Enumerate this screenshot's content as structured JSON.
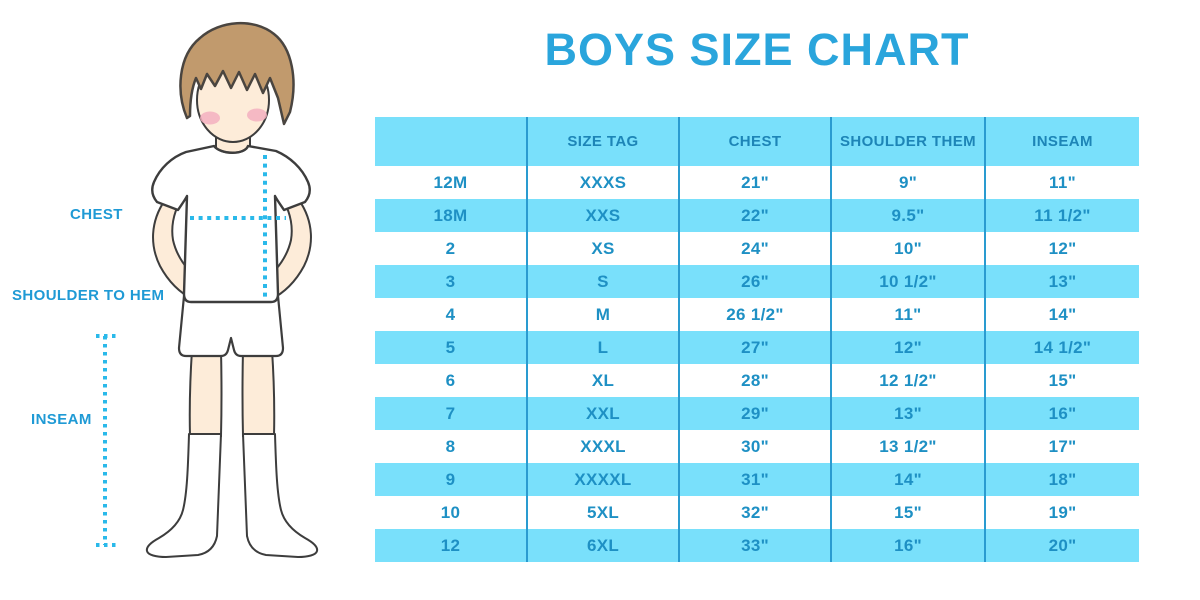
{
  "title": "BOYS SIZE CHART",
  "figure": {
    "description": "boy-in-tshirt-shorts-socks-illustration",
    "labels": {
      "chest": "CHEST",
      "shoulder_to_hem": "SHOULDER TO HEM",
      "inseam": "INSEAM"
    }
  },
  "chart_data": {
    "type": "table",
    "title": "BOYS SIZE CHART",
    "columns": [
      "",
      "SIZE TAG",
      "CHEST",
      "SHOULDER THEM",
      "INSEAM"
    ],
    "rows": [
      [
        "12M",
        "XXXS",
        "21\"",
        "9\"",
        "11\""
      ],
      [
        "18M",
        "XXS",
        "22\"",
        "9.5\"",
        "11 1/2\""
      ],
      [
        "2",
        "XS",
        "24\"",
        "10\"",
        "12\""
      ],
      [
        "3",
        "S",
        "26\"",
        "10 1/2\"",
        "13\""
      ],
      [
        "4",
        "M",
        "26 1/2\"",
        "11\"",
        "14\""
      ],
      [
        "5",
        "L",
        "27\"",
        "12\"",
        "14 1/2\""
      ],
      [
        "6",
        "XL",
        "28\"",
        "12 1/2\"",
        "15\""
      ],
      [
        "7",
        "XXL",
        "29\"",
        "13\"",
        "16\""
      ],
      [
        "8",
        "XXXL",
        "30\"",
        "13 1/2\"",
        "17\""
      ],
      [
        "9",
        "XXXXL",
        "31\"",
        "14\"",
        "18\""
      ],
      [
        "10",
        "5XL",
        "32\"",
        "15\"",
        "19\""
      ],
      [
        "12",
        "6XL",
        "33\"",
        "16\"",
        "20\""
      ]
    ],
    "layout": {
      "alternating_row_colors": true,
      "first_data_row_background": "white",
      "header_background": "light-blue"
    }
  },
  "colors": {
    "title_blue": "#2aa5dc",
    "row_light_blue": "#79e0fb",
    "cell_text_blue": "#1e90c4",
    "header_text_blue": "#1d85b7",
    "divider_blue": "#2a9bd0",
    "label_blue": "#1f9ad5",
    "dotted_line_cyan": "#2ab9ea",
    "hair_brown": "#c19a6d",
    "skin": "#fdecd9",
    "blush_pink": "#f3b0c0",
    "outline": "#3d3d3d"
  }
}
